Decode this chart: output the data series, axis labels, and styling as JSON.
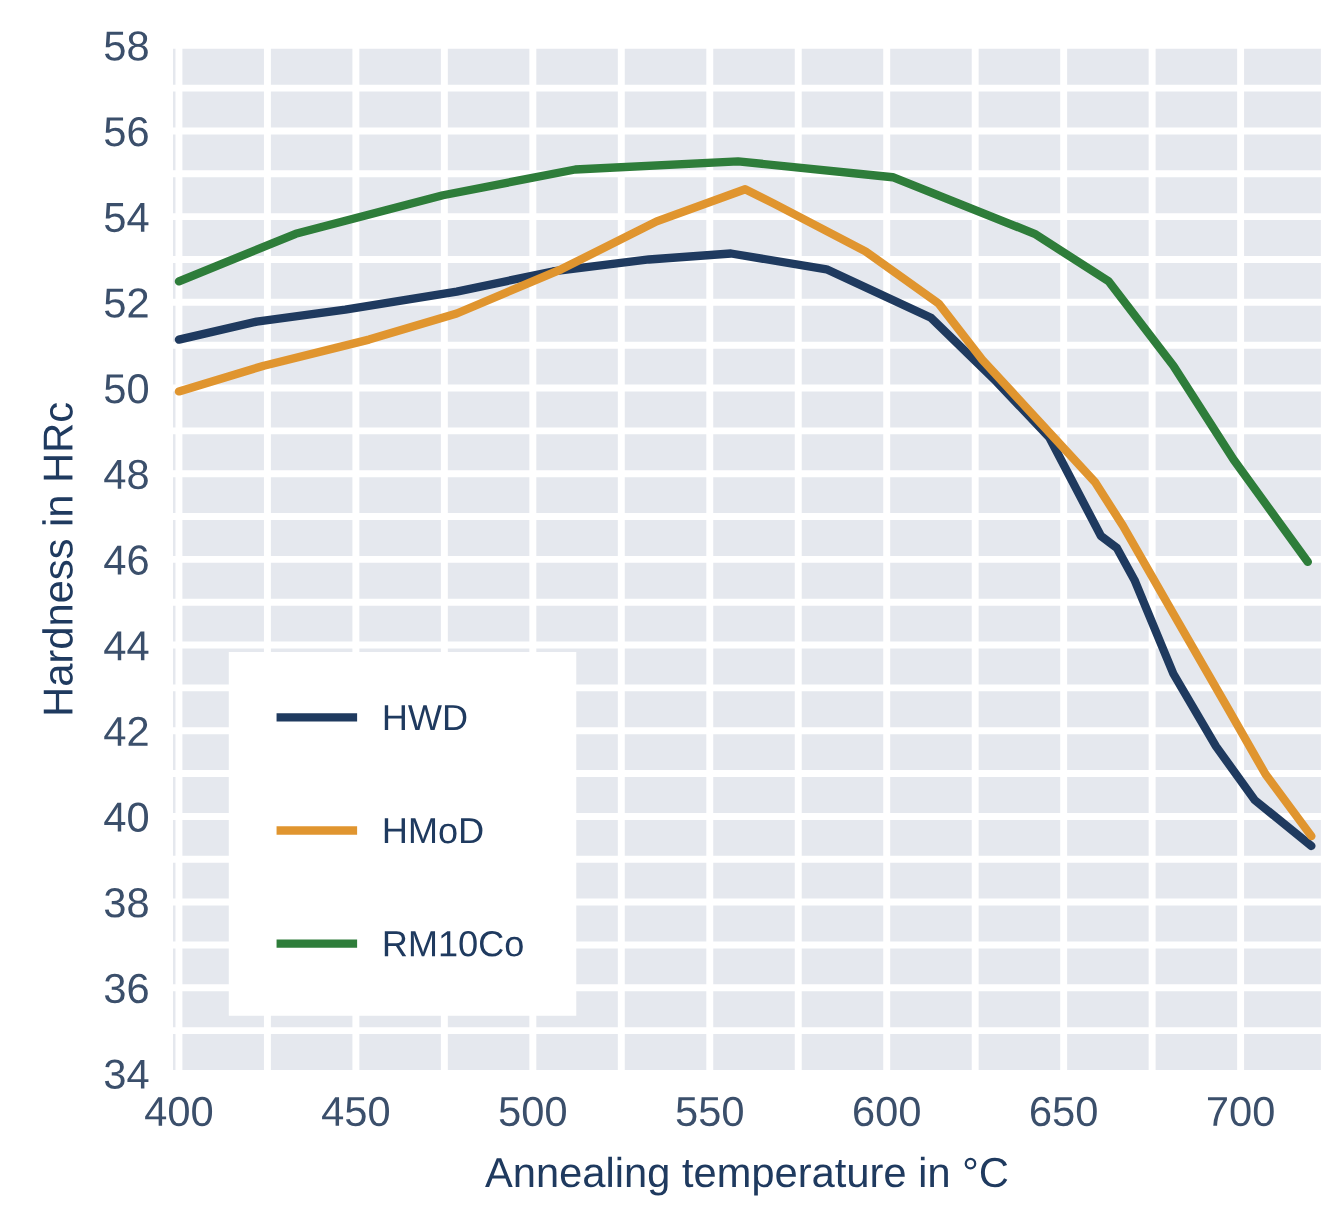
{
  "chart_data": {
    "type": "line",
    "xlabel": "Annealing temperature in °C",
    "ylabel": "Hardness in HRc",
    "xlim": [
      398,
      723
    ],
    "ylim": [
      34,
      58
    ],
    "xticks": [
      400,
      450,
      500,
      550,
      600,
      650,
      700
    ],
    "yticks": [
      34,
      36,
      38,
      40,
      42,
      44,
      46,
      48,
      50,
      52,
      54,
      56,
      58
    ],
    "grid": true,
    "legend": "bottom left",
    "marker": "none",
    "line_style": "solid",
    "series": [
      {
        "name": "HWD",
        "color": "#1f3a5f",
        "x": [
          400,
          422,
          447,
          478.5,
          505.6,
          532.8,
          556,
          583,
          612.5,
          631,
          646,
          660.5,
          665,
          670,
          681,
          693,
          704,
          720
        ],
        "values": [
          51.13,
          51.55,
          51.83,
          52.25,
          52.72,
          53.0,
          53.14,
          52.77,
          51.64,
          50.15,
          48.84,
          46.55,
          46.27,
          45.52,
          43.33,
          41.64,
          40.38,
          39.31
        ]
      },
      {
        "name": "HMoD",
        "color": "#e0952f",
        "x": [
          400,
          424,
          453.7,
          478.5,
          508,
          535,
          560,
          568,
          594,
          614.7,
          627,
          658.8,
          666.7,
          681,
          696,
          707,
          720
        ],
        "values": [
          49.92,
          50.52,
          51.13,
          51.74,
          52.77,
          53.89,
          54.64,
          54.31,
          53.19,
          51.97,
          50.66,
          47.81,
          46.79,
          44.73,
          42.58,
          40.99,
          39.54
        ]
      },
      {
        "name": "RM10Co",
        "color": "#2e7d3a",
        "x": [
          400,
          433,
          474.6,
          512,
          558,
          601.7,
          641.8,
          662.7,
          681,
          698,
          719
        ],
        "values": [
          52.49,
          53.6,
          54.5,
          55.1,
          55.29,
          54.92,
          53.6,
          52.49,
          50.52,
          48.33,
          45.94
        ]
      }
    ]
  }
}
